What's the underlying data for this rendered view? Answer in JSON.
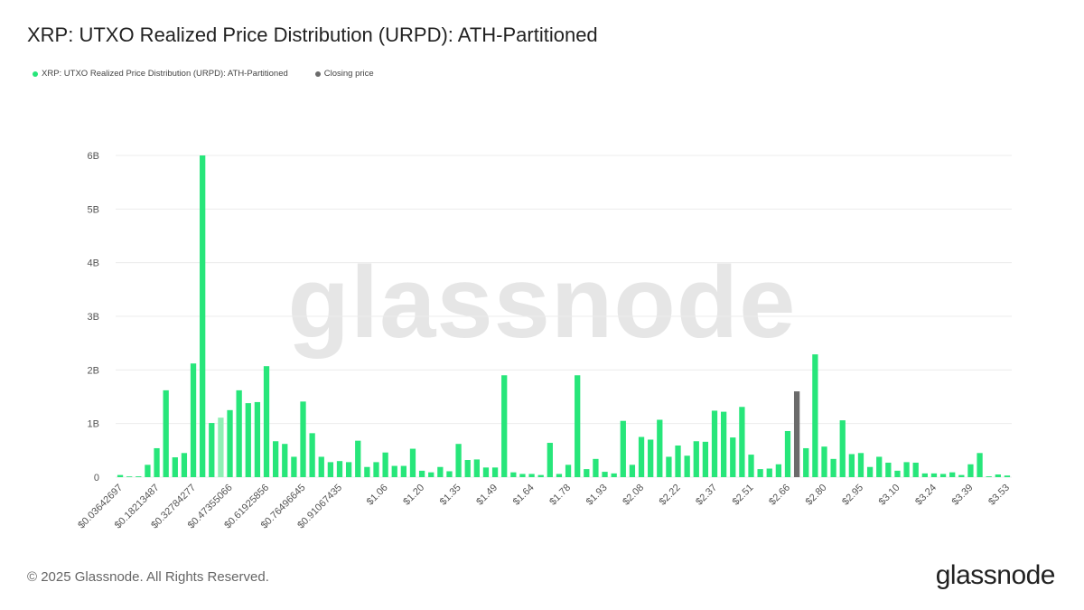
{
  "title": "XRP: UTXO Realized Price Distribution (URPD): ATH-Partitioned",
  "legend": [
    {
      "label": "XRP: UTXO Realized Price Distribution (URPD): ATH-Partitioned",
      "color": "#27e67a"
    },
    {
      "label": "Closing price",
      "color": "#6b6b6b"
    }
  ],
  "watermark": "glassnode",
  "footer": "© 2025 Glassnode. All Rights Reserved.",
  "logo": "glassnode",
  "colors": {
    "bar": "#27e67a",
    "bar_light": "#8ff0b4",
    "closing": "#6b6b6b",
    "grid": "#ececec",
    "axis_text": "#555555"
  },
  "chart_data": {
    "type": "bar",
    "title": "XRP: UTXO Realized Price Distribution (URPD): ATH-Partitioned",
    "xlabel": "",
    "ylabel": "",
    "ylim": [
      0,
      6000000000
    ],
    "yticks": [
      {
        "value": 0,
        "label": "0"
      },
      {
        "value": 1000000000,
        "label": "1B"
      },
      {
        "value": 2000000000,
        "label": "2B"
      },
      {
        "value": 3000000000,
        "label": "3B"
      },
      {
        "value": 4000000000,
        "label": "4B"
      },
      {
        "value": 5000000000,
        "label": "5B"
      },
      {
        "value": 6000000000,
        "label": "6B"
      }
    ],
    "grid": true,
    "legend_position": "top-left",
    "closing_index": 74,
    "light_indices": [
      11
    ],
    "xtick_labels": [
      {
        "index": 0,
        "label": "$0.03642697"
      },
      {
        "index": 4,
        "label": "$0.18213487"
      },
      {
        "index": 8,
        "label": "$0.32784277"
      },
      {
        "index": 12,
        "label": "$0.47355066"
      },
      {
        "index": 16,
        "label": "$0.61925856"
      },
      {
        "index": 20,
        "label": "$0.76496645"
      },
      {
        "index": 24,
        "label": "$0.91067435"
      },
      {
        "index": 29,
        "label": "$1.06"
      },
      {
        "index": 33,
        "label": "$1.20"
      },
      {
        "index": 37,
        "label": "$1.35"
      },
      {
        "index": 41,
        "label": "$1.49"
      },
      {
        "index": 45,
        "label": "$1.64"
      },
      {
        "index": 49,
        "label": "$1.78"
      },
      {
        "index": 53,
        "label": "$1.93"
      },
      {
        "index": 57,
        "label": "$2.08"
      },
      {
        "index": 61,
        "label": "$2.22"
      },
      {
        "index": 65,
        "label": "$2.37"
      },
      {
        "index": 69,
        "label": "$2.51"
      },
      {
        "index": 73,
        "label": "$2.66"
      },
      {
        "index": 77,
        "label": "$2.80"
      },
      {
        "index": 81,
        "label": "$2.95"
      },
      {
        "index": 85,
        "label": "$3.10"
      },
      {
        "index": 89,
        "label": "$3.24"
      },
      {
        "index": 93,
        "label": "$3.39"
      },
      {
        "index": 97,
        "label": "$3.53"
      }
    ],
    "series": [
      {
        "name": "XRP: UTXO Realized Price Distribution (URPD): ATH-Partitioned",
        "values": [
          40000000,
          5000000,
          15000000,
          230000000,
          540000000,
          1620000000,
          370000000,
          450000000,
          2120000000,
          6000000000,
          1010000000,
          1110000000,
          1250000000,
          1620000000,
          1380000000,
          1400000000,
          2070000000,
          670000000,
          620000000,
          380000000,
          1410000000,
          820000000,
          380000000,
          280000000,
          300000000,
          280000000,
          680000000,
          190000000,
          280000000,
          460000000,
          210000000,
          210000000,
          530000000,
          120000000,
          90000000,
          190000000,
          110000000,
          620000000,
          320000000,
          330000000,
          180000000,
          180000000,
          1900000000,
          90000000,
          60000000,
          60000000,
          40000000,
          640000000,
          60000000,
          230000000,
          1900000000,
          150000000,
          340000000,
          100000000,
          70000000,
          1050000000,
          230000000,
          750000000,
          700000000,
          1070000000,
          380000000,
          590000000,
          400000000,
          670000000,
          660000000,
          1240000000,
          1220000000,
          740000000,
          1310000000,
          420000000,
          150000000,
          160000000,
          240000000,
          860000000,
          1600000000,
          540000000,
          2290000000,
          570000000,
          340000000,
          1060000000,
          430000000,
          450000000,
          190000000,
          380000000,
          270000000,
          120000000,
          280000000,
          270000000,
          70000000,
          70000000,
          60000000,
          90000000,
          40000000,
          240000000,
          450000000,
          15000000,
          50000000,
          30000000
        ]
      }
    ]
  }
}
